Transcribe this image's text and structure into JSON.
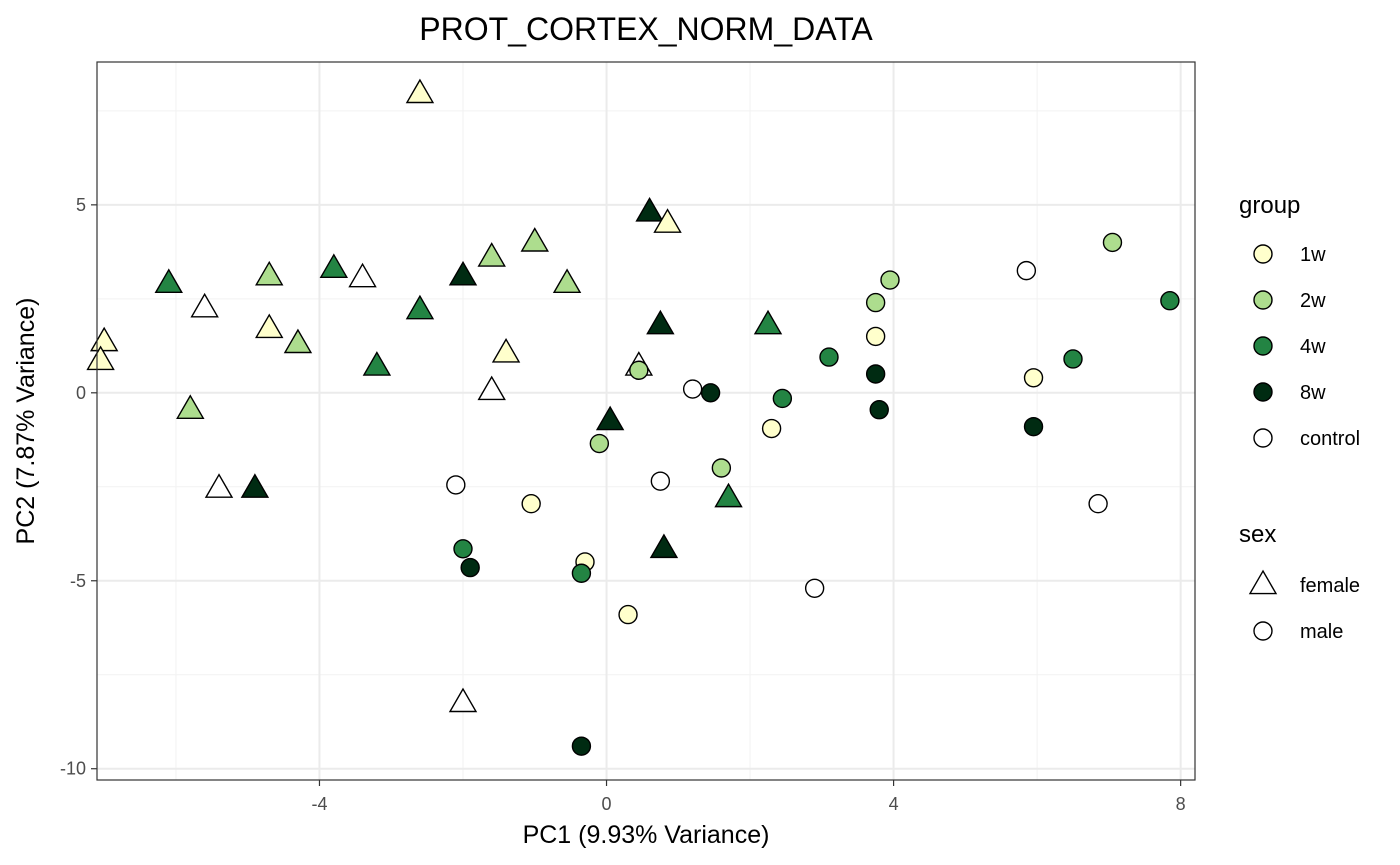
{
  "chart_data": {
    "type": "scatter",
    "title": "PROT_CORTEX_NORM_DATA",
    "xlabel": "PC1 (9.93% Variance)",
    "ylabel": "PC2 (7.87% Variance)",
    "xlim": [
      -7.1,
      8.2
    ],
    "ylim": [
      -10.3,
      8.8
    ],
    "x_ticks": [
      -4,
      0,
      4,
      8
    ],
    "x_tick_labels": [
      "-4",
      "0",
      "4",
      "8"
    ],
    "y_ticks": [
      -10,
      -5,
      0,
      5
    ],
    "y_tick_labels": [
      "-10",
      "-5",
      "0",
      "5"
    ],
    "grid": true,
    "legend_position": "right",
    "legends": {
      "group": {
        "title": "group",
        "items": [
          {
            "label": "1w",
            "color": "#ffffcc"
          },
          {
            "label": "2w",
            "color": "#addd8e"
          },
          {
            "label": "4w",
            "color": "#238443"
          },
          {
            "label": "8w",
            "color": "#002b12"
          },
          {
            "label": "control",
            "color": "#ffffff"
          }
        ]
      },
      "sex": {
        "title": "sex",
        "items": [
          {
            "label": "female",
            "shape": "triangle"
          },
          {
            "label": "male",
            "shape": "circle"
          }
        ]
      }
    },
    "points": [
      {
        "x": -2.6,
        "y": 7.95,
        "group": "1w",
        "sex": "female"
      },
      {
        "x": 0.6,
        "y": 4.8,
        "group": "8w",
        "sex": "female"
      },
      {
        "x": 0.85,
        "y": 4.5,
        "group": "1w",
        "sex": "female"
      },
      {
        "x": -1.0,
        "y": 4.0,
        "group": "2w",
        "sex": "female"
      },
      {
        "x": -1.6,
        "y": 3.6,
        "group": "2w",
        "sex": "female"
      },
      {
        "x": -3.8,
        "y": 3.3,
        "group": "4w",
        "sex": "female"
      },
      {
        "x": -4.7,
        "y": 3.1,
        "group": "2w",
        "sex": "female"
      },
      {
        "x": -3.4,
        "y": 3.05,
        "group": "control",
        "sex": "female"
      },
      {
        "x": -2.0,
        "y": 3.1,
        "group": "8w",
        "sex": "female"
      },
      {
        "x": -6.1,
        "y": 2.9,
        "group": "4w",
        "sex": "female"
      },
      {
        "x": -0.55,
        "y": 2.9,
        "group": "2w",
        "sex": "female"
      },
      {
        "x": -5.6,
        "y": 2.25,
        "group": "control",
        "sex": "female"
      },
      {
        "x": -2.6,
        "y": 2.2,
        "group": "4w",
        "sex": "female"
      },
      {
        "x": 0.75,
        "y": 1.8,
        "group": "8w",
        "sex": "female"
      },
      {
        "x": 2.25,
        "y": 1.8,
        "group": "4w",
        "sex": "female"
      },
      {
        "x": -4.7,
        "y": 1.7,
        "group": "1w",
        "sex": "female"
      },
      {
        "x": -7.0,
        "y": 1.35,
        "group": "1w",
        "sex": "female"
      },
      {
        "x": -4.3,
        "y": 1.3,
        "group": "2w",
        "sex": "female"
      },
      {
        "x": -1.4,
        "y": 1.05,
        "group": "1w",
        "sex": "female"
      },
      {
        "x": -7.05,
        "y": 0.85,
        "group": "1w",
        "sex": "female"
      },
      {
        "x": -3.2,
        "y": 0.7,
        "group": "4w",
        "sex": "female"
      },
      {
        "x": 0.45,
        "y": 0.7,
        "group": "control",
        "sex": "female"
      },
      {
        "x": -1.6,
        "y": 0.05,
        "group": "control",
        "sex": "female"
      },
      {
        "x": -5.8,
        "y": -0.45,
        "group": "2w",
        "sex": "female"
      },
      {
        "x": 0.05,
        "y": -0.75,
        "group": "8w",
        "sex": "female"
      },
      {
        "x": -5.4,
        "y": -2.55,
        "group": "control",
        "sex": "female"
      },
      {
        "x": -4.9,
        "y": -2.55,
        "group": "8w",
        "sex": "female"
      },
      {
        "x": 1.7,
        "y": -2.8,
        "group": "4w",
        "sex": "female"
      },
      {
        "x": 0.8,
        "y": -4.15,
        "group": "8w",
        "sex": "female"
      },
      {
        "x": -2.0,
        "y": -8.25,
        "group": "control",
        "sex": "female"
      },
      {
        "x": 7.05,
        "y": 4.0,
        "group": "2w",
        "sex": "male"
      },
      {
        "x": 5.85,
        "y": 3.25,
        "group": "control",
        "sex": "male"
      },
      {
        "x": 3.95,
        "y": 3.0,
        "group": "2w",
        "sex": "male"
      },
      {
        "x": 7.85,
        "y": 2.45,
        "group": "4w",
        "sex": "male"
      },
      {
        "x": 3.75,
        "y": 2.4,
        "group": "2w",
        "sex": "male"
      },
      {
        "x": 3.75,
        "y": 1.5,
        "group": "1w",
        "sex": "male"
      },
      {
        "x": 3.1,
        "y": 0.95,
        "group": "4w",
        "sex": "male"
      },
      {
        "x": 6.5,
        "y": 0.9,
        "group": "4w",
        "sex": "male"
      },
      {
        "x": 0.45,
        "y": 0.6,
        "group": "2w",
        "sex": "male"
      },
      {
        "x": 3.75,
        "y": 0.5,
        "group": "8w",
        "sex": "male"
      },
      {
        "x": 5.95,
        "y": 0.4,
        "group": "1w",
        "sex": "male"
      },
      {
        "x": 1.2,
        "y": 0.1,
        "group": "control",
        "sex": "male"
      },
      {
        "x": 1.45,
        "y": 0.0,
        "group": "8w",
        "sex": "male"
      },
      {
        "x": 2.45,
        "y": -0.15,
        "group": "4w",
        "sex": "male"
      },
      {
        "x": 3.8,
        "y": -0.45,
        "group": "8w",
        "sex": "male"
      },
      {
        "x": 5.95,
        "y": -0.9,
        "group": "8w",
        "sex": "male"
      },
      {
        "x": 2.3,
        "y": -0.95,
        "group": "1w",
        "sex": "male"
      },
      {
        "x": -0.1,
        "y": -1.35,
        "group": "2w",
        "sex": "male"
      },
      {
        "x": 1.6,
        "y": -2.0,
        "group": "2w",
        "sex": "male"
      },
      {
        "x": 0.75,
        "y": -2.35,
        "group": "control",
        "sex": "male"
      },
      {
        "x": -2.1,
        "y": -2.45,
        "group": "control",
        "sex": "male"
      },
      {
        "x": -1.05,
        "y": -2.95,
        "group": "1w",
        "sex": "male"
      },
      {
        "x": 6.85,
        "y": -2.95,
        "group": "control",
        "sex": "male"
      },
      {
        "x": -2.0,
        "y": -4.15,
        "group": "4w",
        "sex": "male"
      },
      {
        "x": -0.3,
        "y": -4.5,
        "group": "1w",
        "sex": "male"
      },
      {
        "x": -1.9,
        "y": -4.65,
        "group": "8w",
        "sex": "male"
      },
      {
        "x": -0.35,
        "y": -4.8,
        "group": "4w",
        "sex": "male"
      },
      {
        "x": 2.9,
        "y": -5.2,
        "group": "control",
        "sex": "male"
      },
      {
        "x": 0.3,
        "y": -5.9,
        "group": "1w",
        "sex": "male"
      },
      {
        "x": -0.35,
        "y": -9.4,
        "group": "8w",
        "sex": "male"
      }
    ]
  }
}
